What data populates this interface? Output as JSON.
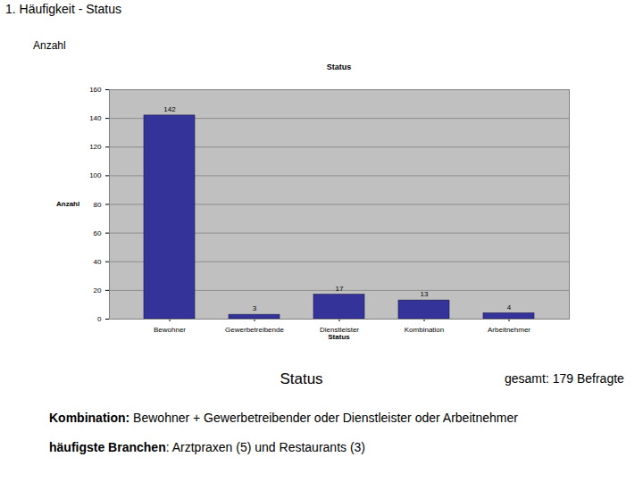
{
  "page": {
    "heading": "1. Häufigkeit - Status",
    "axis_caption": "Anzahl",
    "caption": "Status",
    "total": "gesamt: 179 Befragte",
    "notes": [
      {
        "label": "Kombination:",
        "text": " Bewohner + Gewerbetreibender oder Dienstleister oder Arbeitnehmer"
      },
      {
        "label": "häufigste Branchen",
        "text": ": Arztpraxen (5) und Restaurants (3)"
      }
    ]
  },
  "chart_data": {
    "type": "bar",
    "title": "Status",
    "x_label": "Status",
    "y_label": "Anzahl",
    "categories": [
      "Bewohner",
      "Gewerbetreibende",
      "Dienstleister",
      "Kombination",
      "Arbeitnehmer"
    ],
    "values": [
      142,
      3,
      17,
      13,
      4
    ],
    "color": "#333399",
    "ylim": [
      0,
      160
    ],
    "yticks": [
      0,
      20,
      40,
      60,
      80,
      100,
      120,
      140,
      160
    ],
    "grid": true,
    "data_labels": true
  }
}
